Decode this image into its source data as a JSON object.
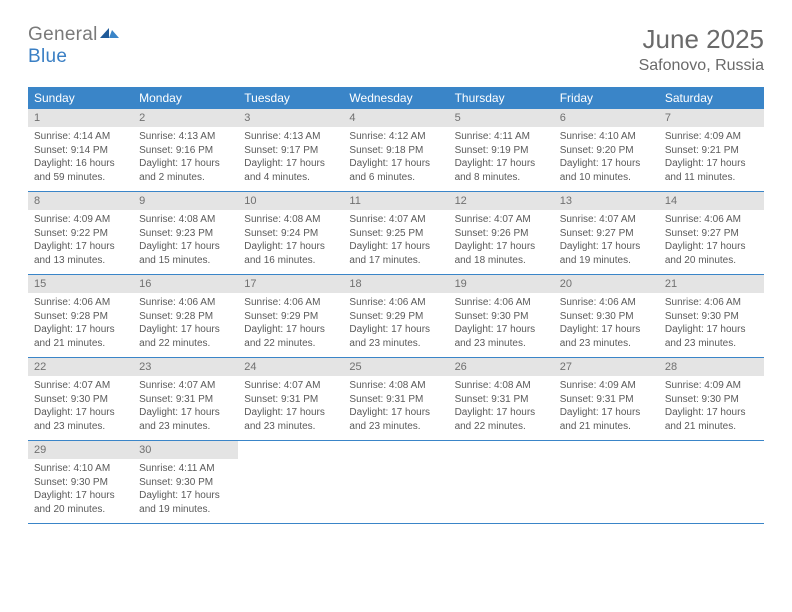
{
  "brand": {
    "general": "General",
    "blue": "Blue"
  },
  "title": "June 2025",
  "location": "Safonovo, Russia",
  "colors": {
    "header_bg": "#3a85c8",
    "header_fg": "#ffffff",
    "daynum_bg": "#e4e4e4",
    "text": "#5a5a5a",
    "row_border": "#3a85c8",
    "brand_blue": "#3a7fc4"
  },
  "weekdays": [
    "Sunday",
    "Monday",
    "Tuesday",
    "Wednesday",
    "Thursday",
    "Friday",
    "Saturday"
  ],
  "weeks": [
    [
      {
        "n": "1",
        "sr": "4:14 AM",
        "ss": "9:14 PM",
        "dl": "16 hours and 59 minutes."
      },
      {
        "n": "2",
        "sr": "4:13 AM",
        "ss": "9:16 PM",
        "dl": "17 hours and 2 minutes."
      },
      {
        "n": "3",
        "sr": "4:13 AM",
        "ss": "9:17 PM",
        "dl": "17 hours and 4 minutes."
      },
      {
        "n": "4",
        "sr": "4:12 AM",
        "ss": "9:18 PM",
        "dl": "17 hours and 6 minutes."
      },
      {
        "n": "5",
        "sr": "4:11 AM",
        "ss": "9:19 PM",
        "dl": "17 hours and 8 minutes."
      },
      {
        "n": "6",
        "sr": "4:10 AM",
        "ss": "9:20 PM",
        "dl": "17 hours and 10 minutes."
      },
      {
        "n": "7",
        "sr": "4:09 AM",
        "ss": "9:21 PM",
        "dl": "17 hours and 11 minutes."
      }
    ],
    [
      {
        "n": "8",
        "sr": "4:09 AM",
        "ss": "9:22 PM",
        "dl": "17 hours and 13 minutes."
      },
      {
        "n": "9",
        "sr": "4:08 AM",
        "ss": "9:23 PM",
        "dl": "17 hours and 15 minutes."
      },
      {
        "n": "10",
        "sr": "4:08 AM",
        "ss": "9:24 PM",
        "dl": "17 hours and 16 minutes."
      },
      {
        "n": "11",
        "sr": "4:07 AM",
        "ss": "9:25 PM",
        "dl": "17 hours and 17 minutes."
      },
      {
        "n": "12",
        "sr": "4:07 AM",
        "ss": "9:26 PM",
        "dl": "17 hours and 18 minutes."
      },
      {
        "n": "13",
        "sr": "4:07 AM",
        "ss": "9:27 PM",
        "dl": "17 hours and 19 minutes."
      },
      {
        "n": "14",
        "sr": "4:06 AM",
        "ss": "9:27 PM",
        "dl": "17 hours and 20 minutes."
      }
    ],
    [
      {
        "n": "15",
        "sr": "4:06 AM",
        "ss": "9:28 PM",
        "dl": "17 hours and 21 minutes."
      },
      {
        "n": "16",
        "sr": "4:06 AM",
        "ss": "9:28 PM",
        "dl": "17 hours and 22 minutes."
      },
      {
        "n": "17",
        "sr": "4:06 AM",
        "ss": "9:29 PM",
        "dl": "17 hours and 22 minutes."
      },
      {
        "n": "18",
        "sr": "4:06 AM",
        "ss": "9:29 PM",
        "dl": "17 hours and 23 minutes."
      },
      {
        "n": "19",
        "sr": "4:06 AM",
        "ss": "9:30 PM",
        "dl": "17 hours and 23 minutes."
      },
      {
        "n": "20",
        "sr": "4:06 AM",
        "ss": "9:30 PM",
        "dl": "17 hours and 23 minutes."
      },
      {
        "n": "21",
        "sr": "4:06 AM",
        "ss": "9:30 PM",
        "dl": "17 hours and 23 minutes."
      }
    ],
    [
      {
        "n": "22",
        "sr": "4:07 AM",
        "ss": "9:30 PM",
        "dl": "17 hours and 23 minutes."
      },
      {
        "n": "23",
        "sr": "4:07 AM",
        "ss": "9:31 PM",
        "dl": "17 hours and 23 minutes."
      },
      {
        "n": "24",
        "sr": "4:07 AM",
        "ss": "9:31 PM",
        "dl": "17 hours and 23 minutes."
      },
      {
        "n": "25",
        "sr": "4:08 AM",
        "ss": "9:31 PM",
        "dl": "17 hours and 23 minutes."
      },
      {
        "n": "26",
        "sr": "4:08 AM",
        "ss": "9:31 PM",
        "dl": "17 hours and 22 minutes."
      },
      {
        "n": "27",
        "sr": "4:09 AM",
        "ss": "9:31 PM",
        "dl": "17 hours and 21 minutes."
      },
      {
        "n": "28",
        "sr": "4:09 AM",
        "ss": "9:30 PM",
        "dl": "17 hours and 21 minutes."
      }
    ],
    [
      {
        "n": "29",
        "sr": "4:10 AM",
        "ss": "9:30 PM",
        "dl": "17 hours and 20 minutes."
      },
      {
        "n": "30",
        "sr": "4:11 AM",
        "ss": "9:30 PM",
        "dl": "17 hours and 19 minutes."
      },
      null,
      null,
      null,
      null,
      null
    ]
  ],
  "labels": {
    "sunrise": "Sunrise: ",
    "sunset": "Sunset: ",
    "daylight": "Daylight: "
  }
}
